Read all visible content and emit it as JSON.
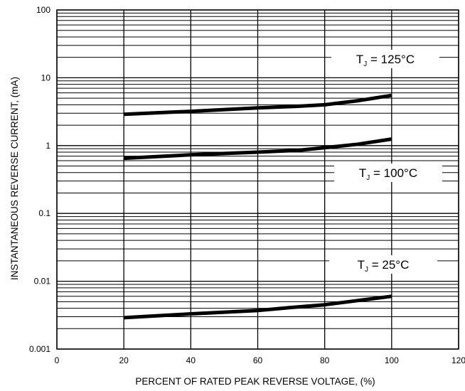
{
  "chart_data": {
    "type": "line",
    "xlabel": "PERCENT OF RATED PEAK REVERSE VOLTAGE, (%)",
    "ylabel": "INSTANTANEOUS REVERSE CURRENT, (mA)",
    "xlim": [
      0,
      120
    ],
    "ylim": [
      0.001,
      100
    ],
    "y_scale": "log",
    "grid": true,
    "x_ticks": [
      "0",
      "20",
      "40",
      "60",
      "80",
      "100",
      "120"
    ],
    "y_ticks": [
      "0.001",
      "0.01",
      "0.1",
      "1",
      "10",
      "100"
    ],
    "series": [
      {
        "name": "TJ = 125°C",
        "x": [
          20,
          40,
          60,
          72,
          80,
          90,
          100
        ],
        "y": [
          2.9,
          3.2,
          3.6,
          3.8,
          4.0,
          4.6,
          5.5
        ]
      },
      {
        "name": "TJ = 100°C",
        "x": [
          20,
          40,
          60,
          72,
          80,
          90,
          100
        ],
        "y": [
          0.65,
          0.73,
          0.8,
          0.85,
          0.93,
          1.05,
          1.25
        ]
      },
      {
        "name": "TJ = 25°C",
        "x": [
          20,
          40,
          60,
          70,
          80,
          90,
          100
        ],
        "y": [
          0.0029,
          0.0033,
          0.0037,
          0.0041,
          0.0045,
          0.0052,
          0.006
        ]
      }
    ],
    "annotations": [
      {
        "series": "TJ = 125°C",
        "prefix": "T",
        "sub": "J",
        "suffix": " = 125°C"
      },
      {
        "series": "TJ = 100°C",
        "prefix": "T",
        "sub": "J",
        "suffix": " = 100°C"
      },
      {
        "series": "TJ = 25°C",
        "prefix": "T",
        "sub": "J",
        "suffix": " = 25°C"
      }
    ]
  }
}
